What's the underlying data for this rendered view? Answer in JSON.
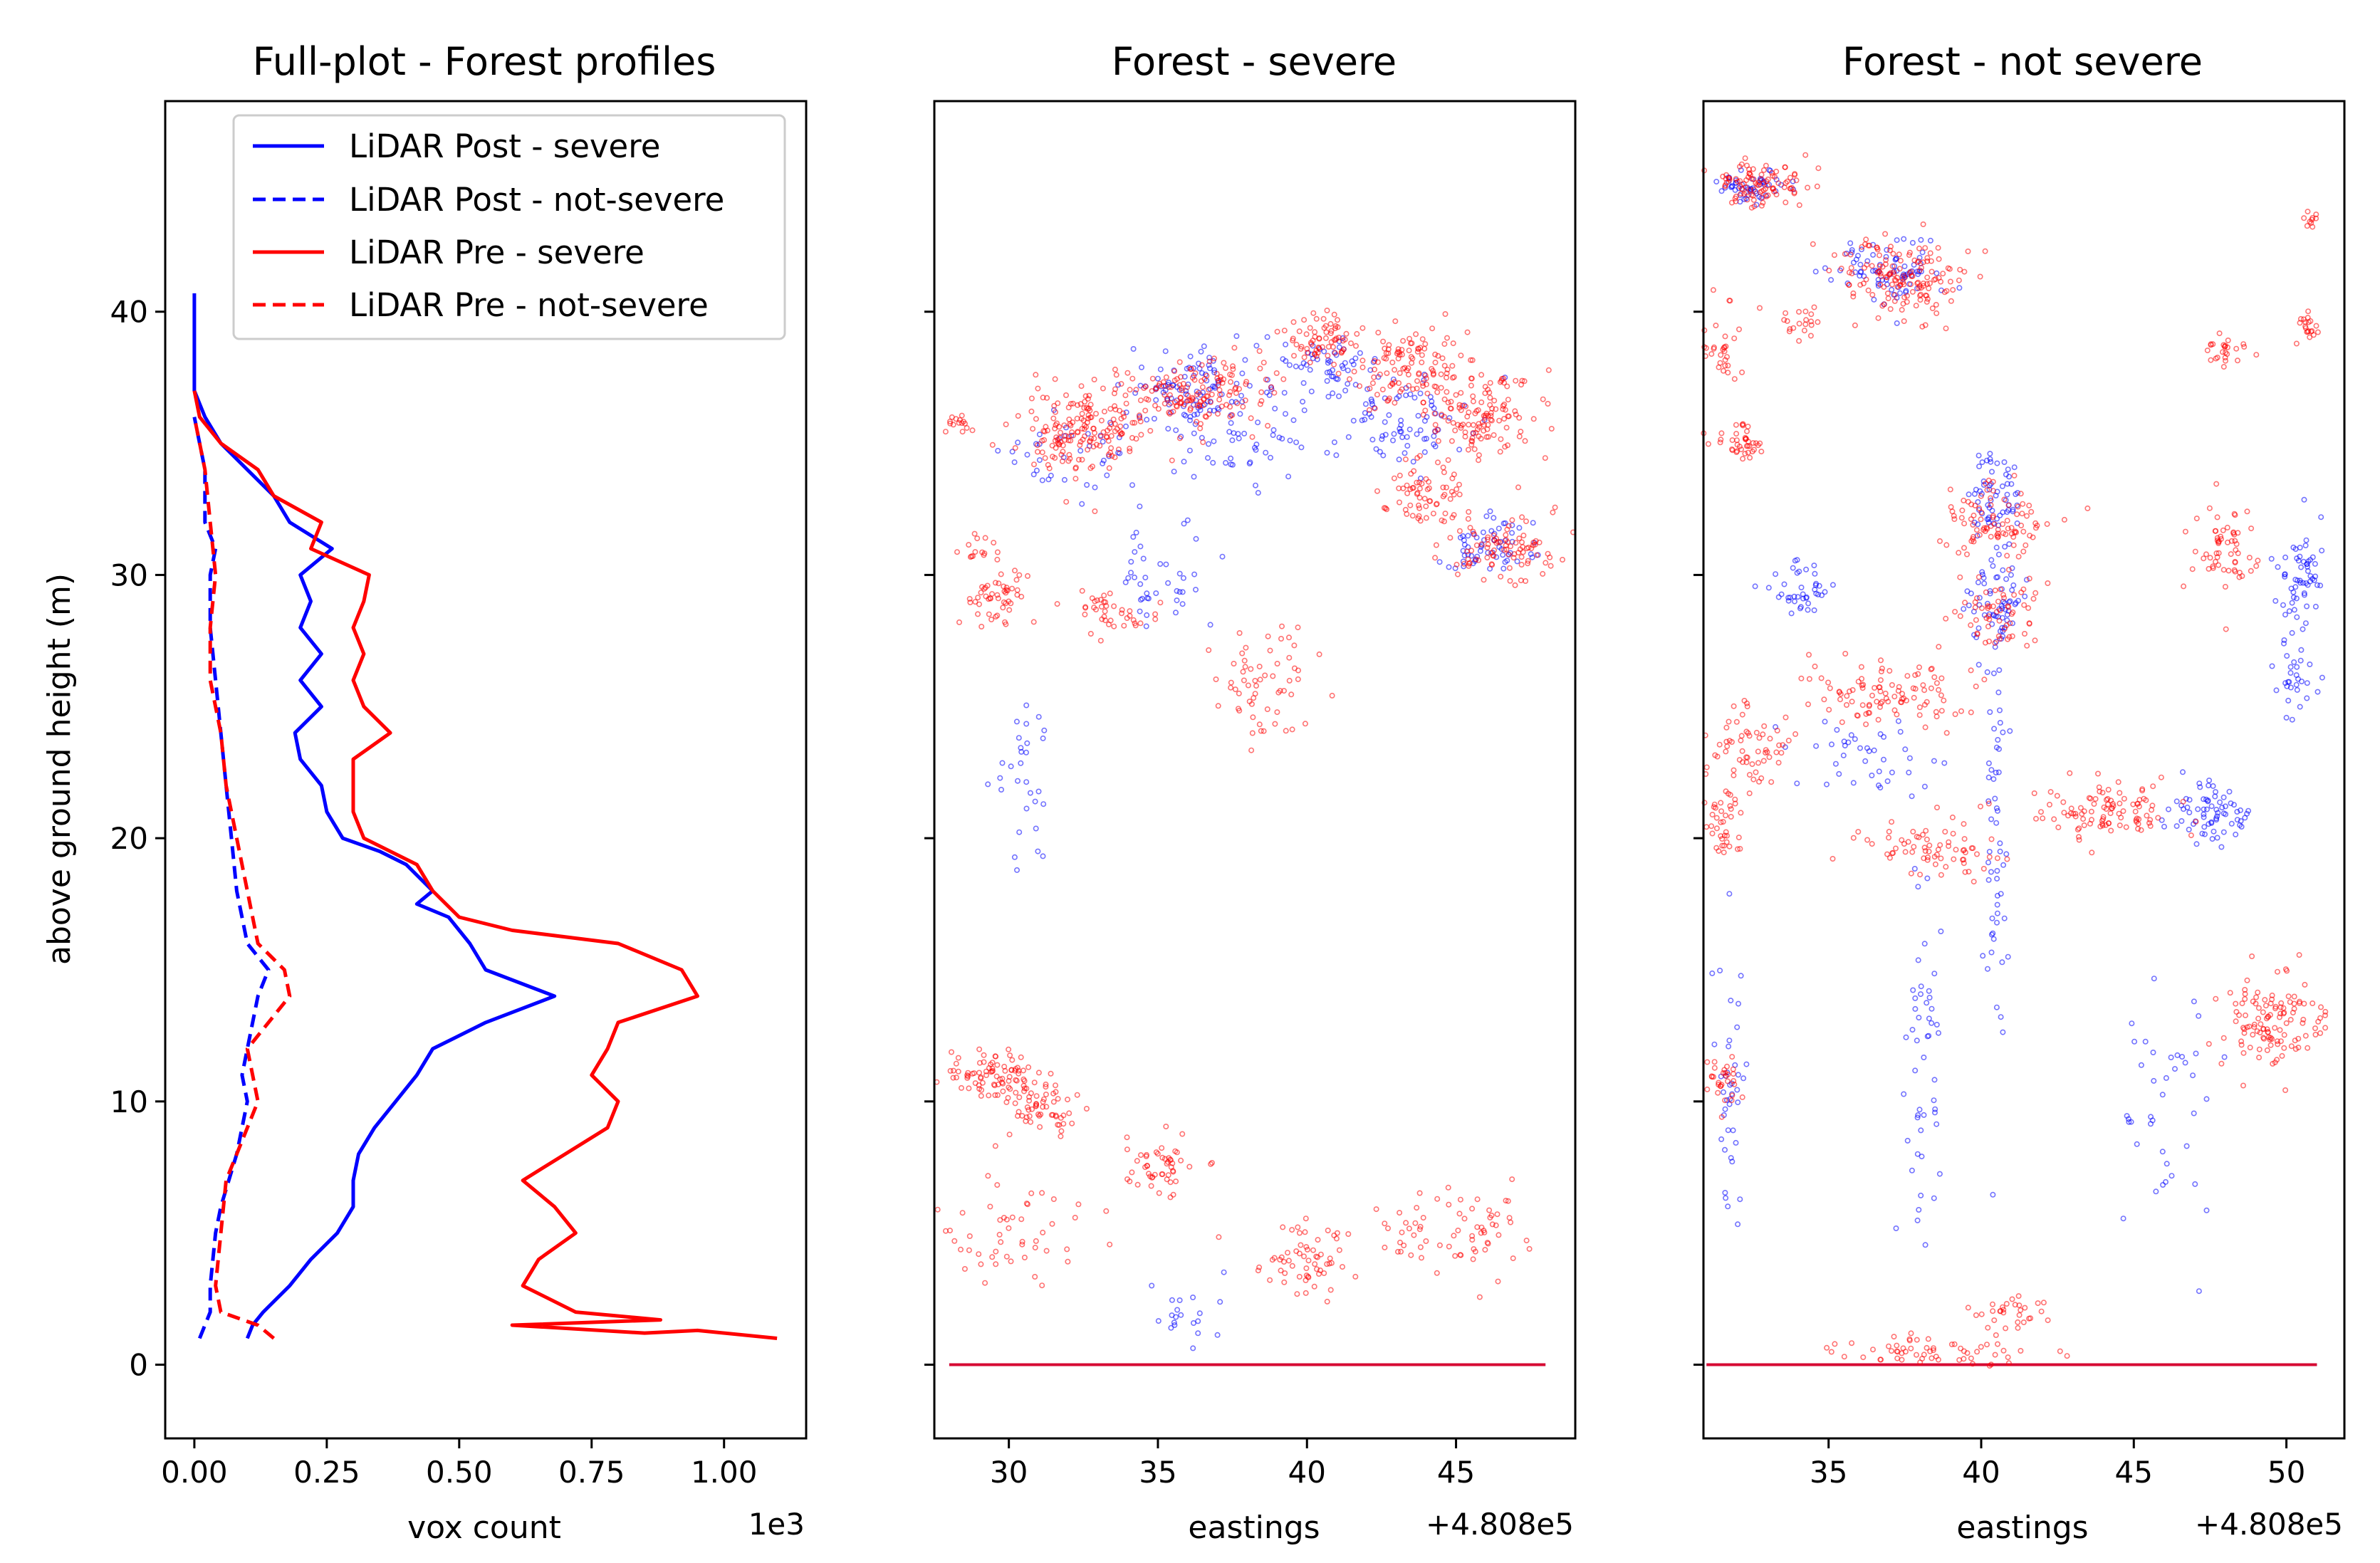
{
  "chart_data": [
    {
      "type": "line",
      "title": "Full-plot - Forest profiles",
      "xlabel": "vox count",
      "x_offset_label": "1e3",
      "ylabel": "above ground height (m)",
      "xlim": [
        -0.055,
        1.155
      ],
      "ylim": [
        -2.8,
        48.0
      ],
      "xticks": [
        0.0,
        0.25,
        0.5,
        0.75,
        1.0
      ],
      "xtick_labels": [
        "0.00",
        "0.25",
        "0.50",
        "0.75",
        "1.00"
      ],
      "yticks": [
        0,
        10,
        20,
        30,
        40
      ],
      "ytick_labels": [
        "0",
        "10",
        "20",
        "30",
        "40"
      ],
      "legend": [
        "LiDAR Post - severe",
        "LiDAR Post - not-severe",
        "LiDAR Pre - severe",
        "LiDAR Pre - not-severe"
      ],
      "legend_position": "top-right",
      "series": [
        {
          "name": "LiDAR Post - severe",
          "color": "#0000ff",
          "style": "solid",
          "points": [
            [
              0.1,
              1
            ],
            [
              0.11,
              1.5
            ],
            [
              0.13,
              2
            ],
            [
              0.18,
              3
            ],
            [
              0.22,
              4
            ],
            [
              0.27,
              5
            ],
            [
              0.3,
              6
            ],
            [
              0.3,
              7
            ],
            [
              0.31,
              8
            ],
            [
              0.34,
              9
            ],
            [
              0.38,
              10
            ],
            [
              0.42,
              11
            ],
            [
              0.45,
              12
            ],
            [
              0.55,
              13
            ],
            [
              0.68,
              14
            ],
            [
              0.55,
              15
            ],
            [
              0.52,
              16
            ],
            [
              0.5,
              16.5
            ],
            [
              0.48,
              17
            ],
            [
              0.42,
              17.5
            ],
            [
              0.45,
              18
            ],
            [
              0.4,
              19
            ],
            [
              0.35,
              19.5
            ],
            [
              0.28,
              20
            ],
            [
              0.25,
              21
            ],
            [
              0.24,
              22
            ],
            [
              0.2,
              23
            ],
            [
              0.19,
              24
            ],
            [
              0.24,
              25
            ],
            [
              0.2,
              26
            ],
            [
              0.24,
              27
            ],
            [
              0.2,
              28
            ],
            [
              0.22,
              29
            ],
            [
              0.2,
              30
            ],
            [
              0.26,
              31
            ],
            [
              0.18,
              32
            ],
            [
              0.15,
              33
            ],
            [
              0.1,
              34
            ],
            [
              0.05,
              35
            ],
            [
              0.02,
              36
            ],
            [
              0.0,
              37
            ],
            [
              0.0,
              40.7
            ]
          ]
        },
        {
          "name": "LiDAR Post - not-severe",
          "color": "#0000ff",
          "style": "dashed",
          "points": [
            [
              0.01,
              1
            ],
            [
              0.03,
              2
            ],
            [
              0.03,
              3
            ],
            [
              0.04,
              5
            ],
            [
              0.05,
              6
            ],
            [
              0.08,
              8
            ],
            [
              0.1,
              10
            ],
            [
              0.09,
              11
            ],
            [
              0.1,
              12
            ],
            [
              0.12,
              14
            ],
            [
              0.14,
              15
            ],
            [
              0.1,
              16
            ],
            [
              0.08,
              18
            ],
            [
              0.07,
              20
            ],
            [
              0.06,
              22
            ],
            [
              0.05,
              24
            ],
            [
              0.04,
              26
            ],
            [
              0.03,
              28
            ],
            [
              0.03,
              30
            ],
            [
              0.04,
              31
            ],
            [
              0.02,
              32
            ],
            [
              0.02,
              34
            ],
            [
              0.0,
              36
            ]
          ]
        },
        {
          "name": "LiDAR Pre - severe",
          "color": "#ff0000",
          "style": "solid",
          "points": [
            [
              1.1,
              1
            ],
            [
              0.95,
              1.3
            ],
            [
              0.85,
              1.2
            ],
            [
              0.6,
              1.5
            ],
            [
              0.88,
              1.7
            ],
            [
              0.72,
              2
            ],
            [
              0.62,
              3
            ],
            [
              0.65,
              4
            ],
            [
              0.72,
              5
            ],
            [
              0.68,
              6
            ],
            [
              0.62,
              7
            ],
            [
              0.7,
              8
            ],
            [
              0.78,
              9
            ],
            [
              0.8,
              10
            ],
            [
              0.75,
              11
            ],
            [
              0.78,
              12
            ],
            [
              0.8,
              13
            ],
            [
              0.95,
              14
            ],
            [
              0.92,
              15
            ],
            [
              0.8,
              16
            ],
            [
              0.6,
              16.5
            ],
            [
              0.5,
              17
            ],
            [
              0.45,
              18
            ],
            [
              0.42,
              19
            ],
            [
              0.32,
              20
            ],
            [
              0.3,
              21
            ],
            [
              0.3,
              22
            ],
            [
              0.3,
              23
            ],
            [
              0.37,
              24
            ],
            [
              0.32,
              25
            ],
            [
              0.3,
              26
            ],
            [
              0.32,
              27
            ],
            [
              0.3,
              28
            ],
            [
              0.32,
              29
            ],
            [
              0.33,
              30
            ],
            [
              0.22,
              31
            ],
            [
              0.24,
              32
            ],
            [
              0.15,
              33
            ],
            [
              0.12,
              34
            ],
            [
              0.05,
              35
            ],
            [
              0.01,
              36
            ],
            [
              0.0,
              37
            ]
          ]
        },
        {
          "name": "LiDAR Pre - not-severe",
          "color": "#ff0000",
          "style": "dashed",
          "points": [
            [
              0.15,
              1
            ],
            [
              0.12,
              1.5
            ],
            [
              0.05,
              2
            ],
            [
              0.04,
              3
            ],
            [
              0.05,
              5
            ],
            [
              0.06,
              7
            ],
            [
              0.1,
              9
            ],
            [
              0.12,
              10
            ],
            [
              0.1,
              12
            ],
            [
              0.18,
              14
            ],
            [
              0.17,
              15
            ],
            [
              0.12,
              16
            ],
            [
              0.1,
              18
            ],
            [
              0.08,
              20
            ],
            [
              0.06,
              22
            ],
            [
              0.05,
              24
            ],
            [
              0.03,
              26
            ],
            [
              0.03,
              28
            ],
            [
              0.04,
              30
            ],
            [
              0.03,
              32
            ],
            [
              0.02,
              34
            ],
            [
              0.0,
              36
            ]
          ]
        }
      ]
    },
    {
      "type": "scatter",
      "title": "Forest - severe",
      "xlabel": "eastings",
      "x_offset_label": "+4.808e5",
      "xlim": [
        27.5,
        49.0
      ],
      "ylim": [
        -2.8,
        48.0
      ],
      "xticks": [
        30,
        35,
        40,
        45
      ],
      "xtick_labels": [
        "30",
        "35",
        "40",
        "45"
      ],
      "yticks": [
        0,
        10,
        20,
        30,
        40
      ],
      "series": [
        {
          "name": "LiDAR Post",
          "color": "#0000ff",
          "clusters": [
            [
              36,
              37,
              1.6,
              1.2,
              90
            ],
            [
              40.5,
              38,
              1.8,
              1.0,
              60
            ],
            [
              43,
              36,
              2,
              1.5,
              80
            ],
            [
              46,
              31,
              1.4,
              1.0,
              60
            ],
            [
              32,
              34.5,
              2.0,
              1.5,
              40
            ],
            [
              35,
              30,
              1.5,
              2,
              40
            ],
            [
              30.5,
              22,
              0.8,
              2.5,
              30
            ],
            [
              36,
              2,
              1.5,
              1,
              20
            ],
            [
              38,
              35,
              2,
              1.5,
              50
            ]
          ],
          "ground": [
            28.0,
            48.0
          ]
        },
        {
          "name": "LiDAR Pre",
          "color": "#ff0000",
          "clusters": [
            [
              32.5,
              35.5,
              1.8,
              1.4,
              180
            ],
            [
              36.5,
              37,
              2.0,
              1.0,
              140
            ],
            [
              40.5,
              39,
              1.0,
              0.8,
              70
            ],
            [
              43.5,
              38,
              1.5,
              1.2,
              110
            ],
            [
              46,
              36,
              1.6,
              1.5,
              130
            ],
            [
              46.5,
              31,
              1.5,
              1.0,
              90
            ],
            [
              44,
              33,
              1.3,
              1.3,
              70
            ],
            [
              29.5,
              29,
              1,
              1,
              50
            ],
            [
              33.5,
              28.5,
              1.2,
              0.8,
              40
            ],
            [
              38.5,
              26,
              1.4,
              2,
              60
            ],
            [
              29.5,
              11,
              1.2,
              0.8,
              80
            ],
            [
              31,
              10,
              1.5,
              1,
              60
            ],
            [
              35,
              7.5,
              1.0,
              1.0,
              50
            ],
            [
              40,
              4,
              1.5,
              1.2,
              60
            ],
            [
              45,
              5,
              2.5,
              1.5,
              70
            ],
            [
              30,
              5,
              2,
              2,
              50
            ],
            [
              28.3,
              35.8,
              0.4,
              0.3,
              15
            ],
            [
              29,
              31,
              0.5,
              0.5,
              15
            ]
          ],
          "ground": [
            28.0,
            48.0
          ]
        }
      ]
    },
    {
      "type": "scatter",
      "title": "Forest - not severe",
      "xlabel": "eastings",
      "x_offset_label": "+4.808e5",
      "xlim": [
        30.9,
        51.9
      ],
      "ylim": [
        -2.8,
        48.0
      ],
      "xticks": [
        35,
        40,
        45,
        50
      ],
      "xtick_labels": [
        "35",
        "40",
        "45",
        "50"
      ],
      "yticks": [
        0,
        10,
        20,
        30,
        40
      ],
      "series": [
        {
          "name": "LiDAR Post",
          "color": "#0000ff",
          "clusters": [
            [
              32.5,
              44.8,
              1,
              0.5,
              50
            ],
            [
              37,
              41.5,
              1.5,
              1,
              80
            ],
            [
              40.5,
              33,
              0.8,
              1.5,
              60
            ],
            [
              40.5,
              29,
              0.8,
              1.5,
              60
            ],
            [
              36.5,
              23,
              2,
              1.5,
              40
            ],
            [
              47.5,
              21,
              1.2,
              1.0,
              70
            ],
            [
              50.5,
              30,
              0.6,
              1.5,
              60
            ],
            [
              50.3,
              26,
              0.5,
              1.2,
              30
            ],
            [
              34,
              29.5,
              0.8,
              0.8,
              40
            ],
            [
              31.8,
              10,
              0.4,
              4,
              40
            ],
            [
              38,
              12,
              0.6,
              6,
              50
            ],
            [
              40.5,
              20,
              0.3,
              8,
              60
            ],
            [
              46,
              10,
              1.5,
              4,
              40
            ]
          ],
          "ground": [
            31.0,
            51.0
          ]
        },
        {
          "name": "LiDAR Pre",
          "color": "#ff0000",
          "clusters": [
            [
              32.5,
              44.8,
              1.3,
              0.7,
              100
            ],
            [
              37.5,
              41.3,
              1.8,
              1.2,
              150
            ],
            [
              31.5,
              38.5,
              0.5,
              1.5,
              30
            ],
            [
              34,
              39.5,
              0.8,
              0.5,
              20
            ],
            [
              32,
              35,
              1,
              0.8,
              40
            ],
            [
              40.5,
              32,
              1.5,
              1.2,
              90
            ],
            [
              40.5,
              28.5,
              1.2,
              1.2,
              60
            ],
            [
              37,
              25.5,
              2,
              1.2,
              100
            ],
            [
              32.5,
              23.5,
              1.2,
              1.2,
              60
            ],
            [
              44,
              21,
              2,
              1,
              100
            ],
            [
              38.5,
              19.5,
              2,
              1,
              70
            ],
            [
              48,
              31,
              1,
              1.5,
              60
            ],
            [
              49.5,
              13,
              1.5,
              1.5,
              120
            ],
            [
              48,
              38.5,
              0.6,
              0.5,
              25
            ],
            [
              50.7,
              39.5,
              0.3,
              0.5,
              20
            ],
            [
              50.8,
              43.5,
              0.2,
              0.3,
              10
            ],
            [
              31.5,
              20.5,
              0.5,
              1.0,
              40
            ],
            [
              31.5,
              11,
              0.5,
              1,
              30
            ],
            [
              41,
              2,
              1,
              0.5,
              30
            ],
            [
              38.5,
              0.5,
              3,
              0.5,
              60
            ]
          ],
          "ground": [
            31.0,
            51.0
          ]
        }
      ]
    }
  ]
}
